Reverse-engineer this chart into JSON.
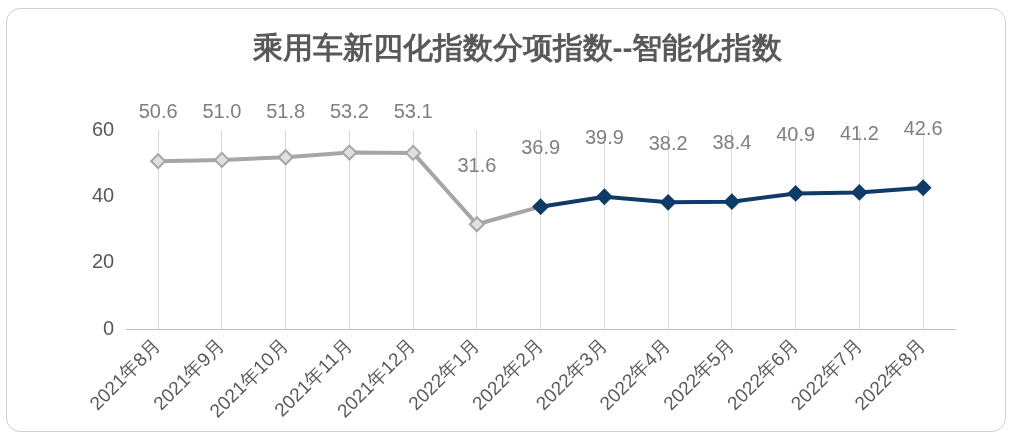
{
  "chart_data": {
    "type": "line",
    "title": "乘用车新四化指数分项指数--智能化指数",
    "categories": [
      "2021年8月",
      "2021年9月",
      "2021年10月",
      "2021年11月",
      "2021年12月",
      "2022年1月",
      "2022年2月",
      "2022年3月",
      "2022年4月",
      "2022年5月",
      "2022年6月",
      "2022年7月",
      "2022年8月"
    ],
    "series": [
      {
        "color": "#a6a6a6",
        "values": [
          50.6,
          51.0,
          51.8,
          53.2,
          53.1,
          31.6,
          36.9,
          null,
          null,
          null,
          null,
          null,
          null
        ],
        "value_labels": [
          "50.6",
          "51.0",
          "51.8",
          "53.2",
          "53.1",
          "31.6",
          null,
          null,
          null,
          null,
          null,
          null,
          null
        ]
      },
      {
        "color": "#0f3b68",
        "values": [
          null,
          null,
          null,
          null,
          null,
          null,
          36.9,
          39.9,
          38.2,
          38.4,
          40.9,
          41.2,
          42.6
        ],
        "value_labels": [
          null,
          null,
          null,
          null,
          null,
          null,
          "36.9",
          "39.9",
          "38.2",
          "38.4",
          "40.9",
          "41.2",
          "42.6"
        ]
      }
    ],
    "ylim": [
      0,
      60
    ],
    "yticks": [
      0,
      20,
      40,
      60
    ],
    "grid": "x",
    "legend": false,
    "marker": "diamond",
    "line_style": "solid"
  }
}
